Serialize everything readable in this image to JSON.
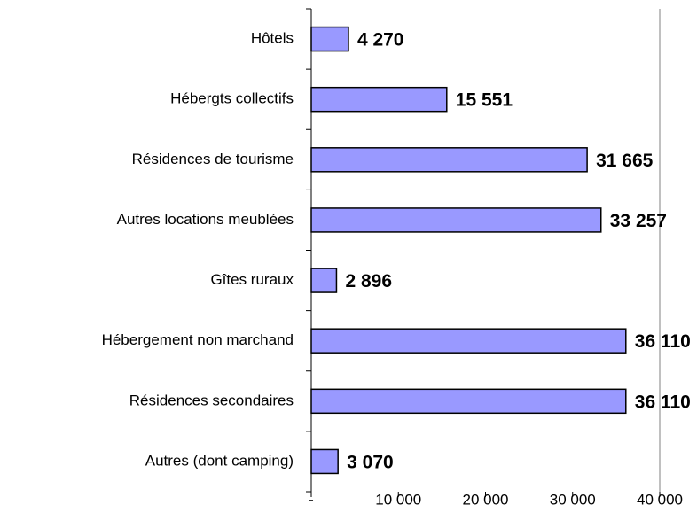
{
  "chart_data": {
    "type": "barh",
    "categories": [
      "Hôtels",
      "Hébergts collectifs",
      "Résidences de tourisme",
      "Autres locations meublées",
      "Gîtes ruraux",
      "Hébergement non marchand",
      "Résidences secondaires",
      "Autres (dont camping)"
    ],
    "values": [
      4270,
      15551,
      31665,
      33257,
      2896,
      36110,
      36110,
      3070
    ],
    "value_labels": [
      "4 270",
      "15 551",
      "31 665",
      "33 257",
      "2 896",
      "36 110",
      "36 110",
      "3 070"
    ],
    "color": "#9999ff",
    "xlim": [
      0,
      40000
    ],
    "xticks": [
      {
        "value": 0,
        "label": "-"
      },
      {
        "value": 10000,
        "label": "10 000"
      },
      {
        "value": 20000,
        "label": "20 000"
      },
      {
        "value": 30000,
        "label": "30 000"
      },
      {
        "value": 40000,
        "label": "40 000"
      }
    ]
  }
}
